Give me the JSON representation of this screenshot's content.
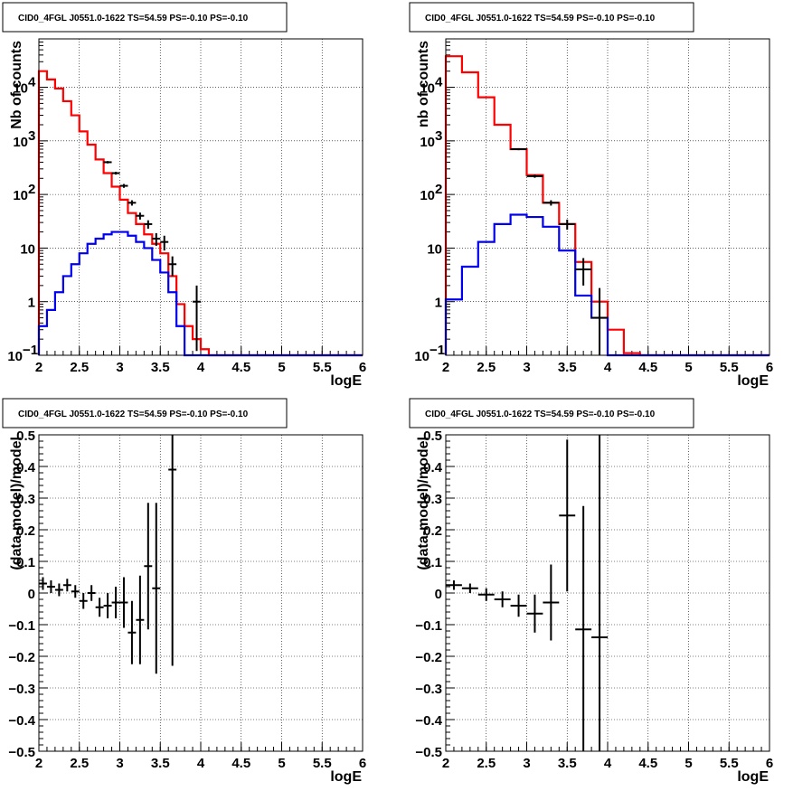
{
  "chart_data": [
    {
      "type": "step",
      "title": "CID0_4FGL J0551.0-1622 TS=54.59 PS=-0.10 PS=-0.10",
      "xlabel": "logE",
      "ylabel": "Nb of counts",
      "xlim": [
        2,
        6
      ],
      "ylim": [
        0.1,
        80000
      ],
      "yscale": "log",
      "grid": true,
      "x_ticks": [
        "2",
        "2.5",
        "3",
        "3.5",
        "4",
        "4.5",
        "5",
        "5.5",
        "6"
      ],
      "y_ticks": [
        {
          "value": 0.1,
          "base": "10",
          "exp": "−1"
        },
        {
          "value": 1,
          "label": "1"
        },
        {
          "value": 10,
          "label": "10"
        },
        {
          "value": 100,
          "base": "10",
          "exp": "2"
        },
        {
          "value": 1000,
          "base": "10",
          "exp": "3"
        },
        {
          "value": 10000,
          "base": "10",
          "exp": "4"
        }
      ],
      "bin_edges": [
        2,
        2.1,
        2.2,
        2.3,
        2.4,
        2.5,
        2.6,
        2.7,
        2.8,
        2.9,
        3,
        3.1,
        3.2,
        3.3,
        3.4,
        3.5,
        3.6,
        3.7,
        3.8,
        3.9,
        4,
        4.1,
        4.2,
        4.3,
        4.4,
        4.5,
        4.6,
        4.7,
        4.8,
        4.9,
        5,
        5.1,
        5.2,
        5.3,
        5.4,
        5.5,
        5.6,
        5.7,
        5.8,
        5.9,
        6
      ],
      "series": [
        {
          "color": "#ff0000",
          "values": [
            20000,
            14000,
            9500,
            5500,
            3000,
            1500,
            850,
            450,
            250,
            140,
            80,
            45,
            28,
            18,
            12,
            8,
            3,
            0.9,
            0.35,
            0.2,
            0.13,
            0.1,
            0.1,
            0.1,
            0.1,
            0.1,
            0.1,
            0.1,
            0.1,
            0.1,
            0.1,
            0.1,
            0.1,
            0.1,
            0.1,
            0.1,
            0.1,
            0.1,
            0.1,
            0.1
          ]
        },
        {
          "color": "#0000ee",
          "values": [
            0.35,
            0.7,
            1.5,
            3,
            5,
            8,
            12,
            15,
            18,
            20,
            20,
            17,
            13,
            10,
            6,
            3.5,
            1.5,
            0.35,
            0.1,
            0.1,
            0.1,
            0.1,
            0.1,
            0.1,
            0.1,
            0.1,
            0.1,
            0.1,
            0.1,
            0.1,
            0.1,
            0.1,
            0.1,
            0.1,
            0.1,
            0.1,
            0.1,
            0.1,
            0.1,
            0.1
          ]
        }
      ],
      "points": [
        {
          "x": 2.85,
          "y": 400,
          "lo": 380,
          "hi": 420
        },
        {
          "x": 2.95,
          "y": 250,
          "lo": 235,
          "hi": 265
        },
        {
          "x": 3.05,
          "y": 145,
          "lo": 133,
          "hi": 157
        },
        {
          "x": 3.15,
          "y": 70,
          "lo": 62,
          "hi": 78
        },
        {
          "x": 3.25,
          "y": 40,
          "lo": 34,
          "hi": 46
        },
        {
          "x": 3.35,
          "y": 28,
          "lo": 23,
          "hi": 33
        },
        {
          "x": 3.45,
          "y": 15,
          "lo": 11,
          "hi": 19
        },
        {
          "x": 3.55,
          "y": 13,
          "lo": 9,
          "hi": 17
        },
        {
          "x": 3.65,
          "y": 5,
          "lo": 3,
          "hi": 7
        },
        {
          "x": 3.95,
          "y": 1,
          "lo": 0.12,
          "hi": 2
        }
      ]
    },
    {
      "type": "step",
      "title": "CID0_4FGL J0551.0-1622 TS=54.59 PS=-0.10 PS=-0.10",
      "xlabel": "logE",
      "ylabel": "nb of counts",
      "xlim": [
        2,
        6
      ],
      "ylim": [
        0.1,
        80000
      ],
      "yscale": "log",
      "grid": true,
      "x_ticks": [
        "2",
        "2.5",
        "3",
        "3.5",
        "4",
        "4.5",
        "5",
        "5.5",
        "6"
      ],
      "y_ticks": [
        {
          "value": 0.1,
          "base": "10",
          "exp": "−1"
        },
        {
          "value": 1,
          "label": "1"
        },
        {
          "value": 10,
          "label": "10"
        },
        {
          "value": 100,
          "base": "10",
          "exp": "2"
        },
        {
          "value": 1000,
          "base": "10",
          "exp": "3"
        },
        {
          "value": 10000,
          "base": "10",
          "exp": "4"
        }
      ],
      "bin_edges": [
        2,
        2.2,
        2.4,
        2.6,
        2.8,
        3,
        3.2,
        3.4,
        3.6,
        3.8,
        4,
        4.2,
        4.4,
        4.6,
        4.8,
        5,
        5.2,
        5.4,
        5.6,
        5.8,
        6
      ],
      "series": [
        {
          "color": "#ff0000",
          "values": [
            38000,
            19000,
            6500,
            2000,
            700,
            230,
            70,
            28,
            5.5,
            1,
            0.3,
            0.11,
            0.1,
            0.1,
            0.1,
            0.1,
            0.1,
            0.1,
            0.1,
            0.1
          ]
        },
        {
          "color": "#0000ee",
          "values": [
            1.1,
            4.5,
            13,
            28,
            42,
            38,
            25,
            9,
            1.3,
            0.5,
            0.1,
            0.1,
            0.1,
            0.1,
            0.1,
            0.1,
            0.1,
            0.1,
            0.1,
            0.1
          ]
        }
      ],
      "points": [
        {
          "x": 2.9,
          "y": 700,
          "lo": 670,
          "hi": 730
        },
        {
          "x": 3.1,
          "y": 220,
          "lo": 205,
          "hi": 235
        },
        {
          "x": 3.3,
          "y": 70,
          "lo": 62,
          "hi": 78
        },
        {
          "x": 3.5,
          "y": 28,
          "lo": 22,
          "hi": 34
        },
        {
          "x": 3.7,
          "y": 4,
          "lo": 2,
          "hi": 6.5
        },
        {
          "x": 3.9,
          "y": 0.5,
          "lo": 0.1,
          "hi": 1.8
        }
      ]
    },
    {
      "type": "scatter",
      "title": "CID0_4FGL J0551.0-1622 TS=54.59 PS=-0.10 PS=-0.10",
      "xlabel": "logE",
      "ylabel": "(data-model)/model",
      "xlim": [
        2,
        6
      ],
      "ylim": [
        -0.5,
        0.5
      ],
      "grid": true,
      "x_ticks": [
        "2",
        "2.5",
        "3",
        "3.5",
        "4",
        "4.5",
        "5",
        "5.5",
        "6"
      ],
      "y_ticks": [
        "−0.5",
        "−0.4",
        "−0.3",
        "−0.2",
        "−0.1",
        "0",
        "0.1",
        "0.2",
        "0.3",
        "0.4",
        "0.5"
      ],
      "points": [
        {
          "x": 2.05,
          "y": 0.03,
          "err": 0.02
        },
        {
          "x": 2.15,
          "y": 0.02,
          "err": 0.02
        },
        {
          "x": 2.25,
          "y": 0.01,
          "err": 0.02
        },
        {
          "x": 2.35,
          "y": 0.025,
          "err": 0.02
        },
        {
          "x": 2.45,
          "y": 0.005,
          "err": 0.02
        },
        {
          "x": 2.55,
          "y": -0.025,
          "err": 0.025
        },
        {
          "x": 2.65,
          "y": 0.0,
          "err": 0.025
        },
        {
          "x": 2.75,
          "y": -0.045,
          "err": 0.03
        },
        {
          "x": 2.85,
          "y": -0.04,
          "err": 0.04
        },
        {
          "x": 2.95,
          "y": -0.03,
          "err": 0.05
        },
        {
          "x": 3.05,
          "y": -0.03,
          "err": 0.08
        },
        {
          "x": 3.15,
          "y": -0.125,
          "err": 0.1
        },
        {
          "x": 3.25,
          "y": -0.085,
          "err": 0.14
        },
        {
          "x": 3.35,
          "y": 0.085,
          "err": 0.2
        },
        {
          "x": 3.45,
          "y": 0.015,
          "err": 0.27
        },
        {
          "x": 3.65,
          "y": 0.39,
          "err": 0.62
        }
      ]
    },
    {
      "type": "scatter",
      "title": "CID0_4FGL J0551.0-1622 TS=54.59 PS=-0.10 PS=-0.10",
      "xlabel": "logE",
      "ylabel": "(data-model)/model",
      "xlim": [
        2,
        6
      ],
      "ylim": [
        -0.5,
        0.5
      ],
      "grid": true,
      "x_ticks": [
        "2",
        "2.5",
        "3",
        "3.5",
        "4",
        "4.5",
        "5",
        "5.5",
        "6"
      ],
      "y_ticks": [
        "−0.5",
        "−0.4",
        "−0.3",
        "−0.2",
        "−0.1",
        "0",
        "0.1",
        "0.2",
        "0.3",
        "0.4",
        "0.5"
      ],
      "points": [
        {
          "x": 2.1,
          "y": 0.025,
          "err": 0.015
        },
        {
          "x": 2.3,
          "y": 0.015,
          "err": 0.015
        },
        {
          "x": 2.5,
          "y": -0.005,
          "err": 0.02
        },
        {
          "x": 2.7,
          "y": -0.02,
          "err": 0.025
        },
        {
          "x": 2.9,
          "y": -0.04,
          "err": 0.035
        },
        {
          "x": 3.1,
          "y": -0.065,
          "err": 0.06
        },
        {
          "x": 3.3,
          "y": -0.03,
          "err": 0.12
        },
        {
          "x": 3.5,
          "y": 0.245,
          "err": 0.24
        },
        {
          "x": 3.7,
          "y": -0.115,
          "err": 0.39
        },
        {
          "x": 3.9,
          "y": -0.14,
          "err": 0.65
        }
      ]
    }
  ]
}
